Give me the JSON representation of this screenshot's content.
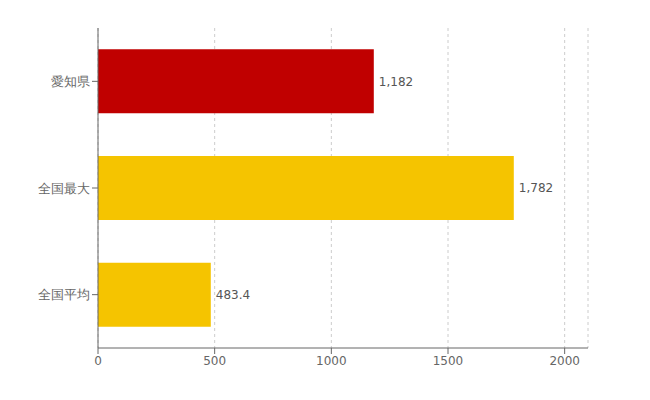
{
  "chart_data": {
    "type": "bar",
    "orientation": "horizontal",
    "categories": [
      "全国平均",
      "全国最大",
      "愛知県"
    ],
    "values": [
      483.4,
      1782,
      1182
    ],
    "value_labels": [
      "483.4",
      "1,782",
      "1,182"
    ],
    "colors": [
      "#F5C400",
      "#F5C400",
      "#C00000"
    ],
    "xlim": [
      0,
      2100
    ],
    "xticks": [
      0,
      500,
      1000,
      1500,
      2000
    ],
    "grid": true,
    "data_labels": true
  }
}
